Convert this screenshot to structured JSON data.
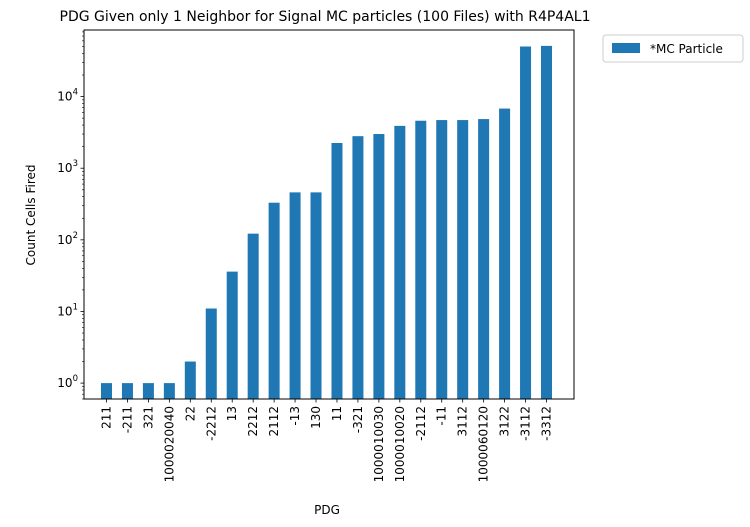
{
  "chart_data": {
    "type": "bar",
    "title": "PDG Given only 1 Neighbor for Signal MC particles (100 Files) with R4P4AL1",
    "xlabel": "PDG",
    "ylabel": "Count Cells Fired",
    "yscale": "log",
    "ylim": [
      0.6,
      85000
    ],
    "yticks": [
      {
        "value": 1,
        "base": "10",
        "exp": "0"
      },
      {
        "value": 10,
        "base": "10",
        "exp": "1"
      },
      {
        "value": 100,
        "base": "10",
        "exp": "2"
      },
      {
        "value": 1000,
        "base": "10",
        "exp": "3"
      },
      {
        "value": 10000,
        "base": "10",
        "exp": "4"
      }
    ],
    "grid": false,
    "legend_position": "outside-top-right",
    "categories": [
      "211",
      "-211",
      "321",
      "1000020040",
      "22",
      "-2212",
      "13",
      "2212",
      "2112",
      "-13",
      "130",
      "11",
      "-321",
      "1000010030",
      "1000010020",
      "-2112",
      "-11",
      "3112",
      "1000060120",
      "3122",
      "-3112",
      "-3312"
    ],
    "series": [
      {
        "name": "*MC Particle",
        "color": "#1f77b4",
        "values": [
          1,
          1,
          1,
          1,
          2,
          11,
          36,
          122,
          330,
          460,
          460,
          2250,
          2800,
          3000,
          3900,
          4600,
          4700,
          4700,
          4850,
          6800,
          50000,
          51000
        ]
      }
    ]
  }
}
